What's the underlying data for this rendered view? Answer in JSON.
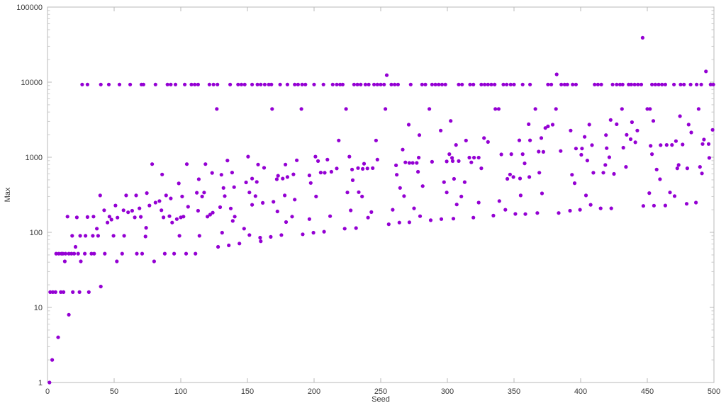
{
  "figure": {
    "background": "#ffffff"
  },
  "chart_data": {
    "type": "scatter",
    "title": "",
    "xlabel": "Seed",
    "ylabel": "Max",
    "legend": "none",
    "grid": false,
    "x_scale": "linear",
    "y_scale": "log10",
    "xlim": [
      0,
      500
    ],
    "ylim": [
      1,
      100000
    ],
    "x_ticks": [
      0,
      50,
      100,
      150,
      200,
      250,
      300,
      350,
      400,
      450,
      500
    ],
    "y_ticks": [
      1,
      10,
      100,
      1000,
      10000,
      100000
    ],
    "y_tick_labels": [
      "1",
      "10",
      "100",
      "1000",
      "10000",
      "100000"
    ],
    "point_color": "#9400d3",
    "point_radius": 2.6,
    "axis_color": "#b8b8b8",
    "minor_tick_color": "#cccccc",
    "label_color": "#3a3a3a",
    "points": [
      [
        26,
        9300
      ],
      [
        30,
        9300
      ],
      [
        40,
        9300
      ],
      [
        46,
        9300
      ],
      [
        54,
        9300
      ],
      [
        62,
        9300
      ],
      [
        70.5,
        9300
      ],
      [
        72,
        9300
      ],
      [
        81,
        9300
      ],
      [
        90,
        9300
      ],
      [
        92.5,
        9300
      ],
      [
        96,
        9300
      ],
      [
        103,
        9300
      ],
      [
        108,
        9300
      ],
      [
        110.5,
        9300
      ],
      [
        113,
        9300
      ],
      [
        121.5,
        9300
      ],
      [
        124.5,
        9300
      ],
      [
        127.5,
        9300
      ],
      [
        137,
        9300
      ],
      [
        143,
        9300
      ],
      [
        145.5,
        9300
      ],
      [
        148,
        9300
      ],
      [
        153.5,
        9300
      ],
      [
        157.5,
        9300
      ],
      [
        160,
        9300
      ],
      [
        163,
        9300
      ],
      [
        166,
        9300
      ],
      [
        168,
        9300
      ],
      [
        174.5,
        9300
      ],
      [
        180,
        9300
      ],
      [
        185.5,
        9300
      ],
      [
        188,
        9300
      ],
      [
        191,
        9300
      ],
      [
        193.5,
        9300
      ],
      [
        200,
        9300
      ],
      [
        207,
        9300
      ],
      [
        214,
        9300
      ],
      [
        217,
        9300
      ],
      [
        219.5,
        9300
      ],
      [
        221.5,
        9300
      ],
      [
        230,
        9300
      ],
      [
        232.5,
        9300
      ],
      [
        235,
        9300
      ],
      [
        238.5,
        9300
      ],
      [
        241,
        9300
      ],
      [
        245,
        9300
      ],
      [
        247.5,
        9300
      ],
      [
        250,
        9300
      ],
      [
        252.5,
        9300
      ],
      [
        258,
        9300
      ],
      [
        260.5,
        9300
      ],
      [
        263,
        9300
      ],
      [
        272.5,
        9300
      ],
      [
        281,
        9300
      ],
      [
        283.5,
        9300
      ],
      [
        288.5,
        9300
      ],
      [
        291,
        9300
      ],
      [
        293.5,
        9300
      ],
      [
        296,
        9300
      ],
      [
        298.5,
        9300
      ],
      [
        308.5,
        9300
      ],
      [
        311,
        9300
      ],
      [
        317,
        9300
      ],
      [
        319.5,
        9300
      ],
      [
        325.5,
        9300
      ],
      [
        328,
        9300
      ],
      [
        330.5,
        9300
      ],
      [
        333,
        9300
      ],
      [
        335.5,
        9300
      ],
      [
        342,
        9300
      ],
      [
        344.5,
        9300
      ],
      [
        347.5,
        9300
      ],
      [
        350,
        9300
      ],
      [
        356.5,
        9300
      ],
      [
        362,
        9300
      ],
      [
        375.5,
        9300
      ],
      [
        378,
        9300
      ],
      [
        385.5,
        9300
      ],
      [
        388,
        9300
      ],
      [
        390,
        9300
      ],
      [
        394,
        9300
      ],
      [
        396.5,
        9300
      ],
      [
        410.5,
        9300
      ],
      [
        413,
        9300
      ],
      [
        415.5,
        9300
      ],
      [
        424,
        9300
      ],
      [
        427,
        9300
      ],
      [
        429.5,
        9300
      ],
      [
        431.5,
        9300
      ],
      [
        436,
        9300
      ],
      [
        438,
        9300
      ],
      [
        440.5,
        9300
      ],
      [
        443,
        9300
      ],
      [
        445.5,
        9300
      ],
      [
        453.5,
        9300
      ],
      [
        456,
        9300
      ],
      [
        458.5,
        9300
      ],
      [
        461,
        9300
      ],
      [
        463.5,
        9300
      ],
      [
        470,
        9300
      ],
      [
        475,
        9300
      ],
      [
        477.5,
        9300
      ],
      [
        482.5,
        9300
      ],
      [
        487,
        9300
      ],
      [
        490.5,
        9300
      ],
      [
        497.5,
        9300
      ],
      [
        499.5,
        9300
      ],
      [
        254.5,
        12400
      ],
      [
        382,
        12700
      ],
      [
        446.5,
        39000
      ],
      [
        494,
        13900
      ],
      [
        127,
        4400
      ],
      [
        168.5,
        4400
      ],
      [
        190.5,
        4400
      ],
      [
        224,
        4400
      ],
      [
        253.5,
        4400
      ],
      [
        286.5,
        4400
      ],
      [
        336,
        4400
      ],
      [
        338.5,
        4400
      ],
      [
        366,
        4400
      ],
      [
        381.5,
        4400
      ],
      [
        431,
        4400
      ],
      [
        450,
        4400
      ],
      [
        452,
        4400
      ],
      [
        488.5,
        4400
      ],
      [
        1.5,
        1
      ],
      [
        3.5,
        2
      ],
      [
        8,
        4
      ],
      [
        16,
        8
      ],
      [
        2,
        16
      ],
      [
        4,
        16
      ],
      [
        6,
        16
      ],
      [
        10,
        16
      ],
      [
        12,
        16
      ],
      [
        19,
        16
      ],
      [
        24,
        16
      ],
      [
        31,
        16
      ],
      [
        40,
        19
      ],
      [
        13,
        41
      ],
      [
        25,
        41
      ],
      [
        52,
        41
      ],
      [
        80,
        41
      ],
      [
        6.5,
        52
      ],
      [
        8.5,
        52
      ],
      [
        10.5,
        52
      ],
      [
        11.5,
        52
      ],
      [
        13.5,
        52
      ],
      [
        16,
        52
      ],
      [
        18,
        52
      ],
      [
        20,
        52
      ],
      [
        23,
        52
      ],
      [
        28,
        52
      ],
      [
        33,
        52
      ],
      [
        35,
        52
      ],
      [
        43,
        52
      ],
      [
        56,
        52
      ],
      [
        67,
        52
      ],
      [
        71,
        52
      ],
      [
        88,
        52
      ],
      [
        95,
        52
      ],
      [
        104,
        52
      ],
      [
        111,
        52
      ],
      [
        21,
        64
      ],
      [
        18.5,
        90
      ],
      [
        24.5,
        90
      ],
      [
        28.5,
        90
      ],
      [
        34,
        90
      ],
      [
        38,
        90
      ],
      [
        49.5,
        90
      ],
      [
        57.5,
        90
      ],
      [
        73.5,
        88
      ],
      [
        99,
        90
      ],
      [
        114,
        90
      ],
      [
        37,
        112
      ],
      [
        74,
        115
      ],
      [
        15,
        162
      ],
      [
        22,
        158
      ],
      [
        30,
        160
      ],
      [
        34.5,
        162
      ],
      [
        46.5,
        162
      ],
      [
        65.5,
        158
      ],
      [
        87,
        158
      ],
      [
        100,
        158
      ],
      [
        102,
        162
      ],
      [
        120,
        162
      ],
      [
        39.5,
        310
      ],
      [
        42.5,
        197
      ],
      [
        45,
        135
      ],
      [
        48,
        148
      ],
      [
        51,
        228
      ],
      [
        52.5,
        157
      ],
      [
        57,
        197
      ],
      [
        59,
        310
      ],
      [
        60.5,
        185
      ],
      [
        63.5,
        194
      ],
      [
        66.5,
        310
      ],
      [
        69,
        209
      ],
      [
        70,
        161
      ],
      [
        74.5,
        333
      ],
      [
        76.5,
        228
      ],
      [
        78.5,
        810
      ],
      [
        81,
        249
      ],
      [
        84,
        261
      ],
      [
        85.5,
        197
      ],
      [
        86,
        590
      ],
      [
        89,
        310
      ],
      [
        91.5,
        164
      ],
      [
        92.5,
        283
      ],
      [
        93.5,
        135
      ],
      [
        97,
        150
      ],
      [
        98.5,
        449
      ],
      [
        101,
        300
      ],
      [
        104.5,
        810
      ],
      [
        105.5,
        219
      ],
      [
        112,
        337
      ],
      [
        113,
        194
      ],
      [
        113.5,
        510
      ],
      [
        116,
        300
      ],
      [
        117.5,
        339
      ],
      [
        118.5,
        810
      ],
      [
        122,
        172
      ],
      [
        123.5,
        619
      ],
      [
        124,
        183
      ],
      [
        128,
        64
      ],
      [
        136,
        67
      ],
      [
        144,
        71
      ],
      [
        160,
        76
      ],
      [
        131,
        99
      ],
      [
        151.5,
        92
      ],
      [
        159.5,
        85
      ],
      [
        167.5,
        87
      ],
      [
        175.5,
        92
      ],
      [
        191.5,
        94
      ],
      [
        199.5,
        99
      ],
      [
        207.5,
        102
      ],
      [
        135,
        904
      ],
      [
        150.5,
        1020
      ],
      [
        187,
        910
      ],
      [
        201,
        1020
      ],
      [
        203,
        890
      ],
      [
        210,
        930
      ],
      [
        226.5,
        1020
      ],
      [
        158,
        800
      ],
      [
        162.5,
        724
      ],
      [
        178.5,
        800
      ],
      [
        217,
        710
      ],
      [
        228.5,
        687
      ],
      [
        233,
        718
      ],
      [
        236.5,
        700
      ],
      [
        237.5,
        820
      ],
      [
        240,
        710
      ],
      [
        244,
        715
      ],
      [
        247.5,
        930
      ],
      [
        218.5,
        1675
      ],
      [
        246.5,
        1675
      ],
      [
        130.5,
        585
      ],
      [
        138.5,
        625
      ],
      [
        153.5,
        520
      ],
      [
        157,
        470
      ],
      [
        172,
        510
      ],
      [
        173,
        567
      ],
      [
        176.5,
        520
      ],
      [
        180,
        545
      ],
      [
        184.5,
        593
      ],
      [
        196.5,
        573
      ],
      [
        205,
        625
      ],
      [
        208,
        622
      ],
      [
        213,
        640
      ],
      [
        229,
        495
      ],
      [
        132,
        390
      ],
      [
        140,
        400
      ],
      [
        149,
        462
      ],
      [
        151.5,
        340
      ],
      [
        156,
        304
      ],
      [
        133,
        304
      ],
      [
        178,
        310
      ],
      [
        185.5,
        273
      ],
      [
        197.5,
        455
      ],
      [
        201.5,
        300
      ],
      [
        225,
        340
      ],
      [
        233.5,
        343
      ],
      [
        236,
        300
      ],
      [
        153.5,
        233
      ],
      [
        161.5,
        247
      ],
      [
        169.5,
        255
      ],
      [
        129.5,
        216
      ],
      [
        137.5,
        208
      ],
      [
        172.5,
        190
      ],
      [
        183.5,
        162
      ],
      [
        212,
        164
      ],
      [
        227.5,
        196
      ],
      [
        243,
        186
      ],
      [
        140.5,
        162
      ],
      [
        139,
        142
      ],
      [
        179,
        137
      ],
      [
        196.5,
        150
      ],
      [
        240.5,
        157
      ],
      [
        147.5,
        112
      ],
      [
        223,
        112
      ],
      [
        231.5,
        114
      ],
      [
        302.5,
        3050
      ],
      [
        271,
        2715
      ],
      [
        361,
        2750
      ],
      [
        373.5,
        2450
      ],
      [
        295,
        2270
      ],
      [
        279,
        1975
      ],
      [
        370.5,
        1800
      ],
      [
        354,
        1680
      ],
      [
        362,
        1680
      ],
      [
        327.5,
        1800
      ],
      [
        330.5,
        1600
      ],
      [
        314,
        1670
      ],
      [
        306.5,
        1460
      ],
      [
        266.5,
        1265
      ],
      [
        368.5,
        1190
      ],
      [
        372,
        1180
      ],
      [
        356.5,
        1100
      ],
      [
        348,
        1100
      ],
      [
        340.5,
        1090
      ],
      [
        301.5,
        1100
      ],
      [
        303.5,
        980
      ],
      [
        316.5,
        990
      ],
      [
        320,
        990
      ],
      [
        323.5,
        990
      ],
      [
        278.5,
        990
      ],
      [
        268.5,
        855
      ],
      [
        271.5,
        840
      ],
      [
        274,
        840
      ],
      [
        277,
        840
      ],
      [
        288.5,
        870
      ],
      [
        299.5,
        880
      ],
      [
        304,
        890
      ],
      [
        308.5,
        890
      ],
      [
        318,
        855
      ],
      [
        358,
        830
      ],
      [
        261.5,
        780
      ],
      [
        325.5,
        713
      ],
      [
        278,
        640
      ],
      [
        262,
        585
      ],
      [
        347,
        590
      ],
      [
        349.5,
        546
      ],
      [
        345,
        516
      ],
      [
        354.5,
        521
      ],
      [
        361.5,
        546
      ],
      [
        369,
        623
      ],
      [
        297.5,
        467
      ],
      [
        313,
        467
      ],
      [
        305,
        516
      ],
      [
        281.5,
        413
      ],
      [
        264.5,
        390
      ],
      [
        299.5,
        340
      ],
      [
        267.5,
        304
      ],
      [
        310.5,
        300
      ],
      [
        355,
        310
      ],
      [
        371,
        330
      ],
      [
        323.5,
        249
      ],
      [
        339,
        261
      ],
      [
        307,
        235
      ],
      [
        275,
        209
      ],
      [
        259,
        200
      ],
      [
        343.5,
        200
      ],
      [
        279.5,
        164
      ],
      [
        351,
        176
      ],
      [
        358.5,
        175
      ],
      [
        367.5,
        181
      ],
      [
        287.5,
        145
      ],
      [
        295.5,
        150
      ],
      [
        304.5,
        152
      ],
      [
        319.5,
        157
      ],
      [
        334.5,
        167
      ],
      [
        256,
        128
      ],
      [
        264,
        135
      ],
      [
        271.5,
        136
      ],
      [
        474.5,
        3525
      ],
      [
        422.5,
        3140
      ],
      [
        379,
        2715
      ],
      [
        406.5,
        2720
      ],
      [
        427,
        2750
      ],
      [
        438.5,
        2930
      ],
      [
        454.5,
        3050
      ],
      [
        481,
        2720
      ],
      [
        375.5,
        2580
      ],
      [
        392.5,
        2270
      ],
      [
        442.5,
        2270
      ],
      [
        499,
        2320
      ],
      [
        483,
        2140
      ],
      [
        403,
        1870
      ],
      [
        419,
        1975
      ],
      [
        434.5,
        1990
      ],
      [
        437.5,
        1740
      ],
      [
        471.5,
        1640
      ],
      [
        441,
        1580
      ],
      [
        492.5,
        1720
      ],
      [
        496,
        1500
      ],
      [
        491.5,
        1500
      ],
      [
        408.5,
        1450
      ],
      [
        452.5,
        1420
      ],
      [
        460,
        1450
      ],
      [
        464.5,
        1460
      ],
      [
        468.5,
        1460
      ],
      [
        476.5,
        1480
      ],
      [
        396.5,
        1305
      ],
      [
        401,
        1305
      ],
      [
        385,
        1210
      ],
      [
        419.5,
        1320
      ],
      [
        432,
        1340
      ],
      [
        400.5,
        1080
      ],
      [
        453.5,
        1100
      ],
      [
        421.5,
        1000
      ],
      [
        405,
        905
      ],
      [
        496.5,
        980
      ],
      [
        418.5,
        790
      ],
      [
        473.5,
        790
      ],
      [
        434,
        745
      ],
      [
        472.5,
        713
      ],
      [
        480,
        713
      ],
      [
        489.5,
        745
      ],
      [
        457,
        687
      ],
      [
        491,
        610
      ],
      [
        393.5,
        585
      ],
      [
        409.5,
        622
      ],
      [
        417,
        623
      ],
      [
        425,
        600
      ],
      [
        459.5,
        510
      ],
      [
        395.5,
        452
      ],
      [
        451.5,
        333
      ],
      [
        467,
        340
      ],
      [
        470.5,
        304
      ],
      [
        404,
        310
      ],
      [
        479.5,
        240
      ],
      [
        486.5,
        249
      ],
      [
        407.5,
        233
      ],
      [
        447,
        225
      ],
      [
        455,
        227
      ],
      [
        463.5,
        228
      ],
      [
        423,
        209
      ],
      [
        415,
        209
      ],
      [
        383.5,
        181
      ],
      [
        392,
        194
      ],
      [
        399.5,
        200
      ]
    ]
  }
}
